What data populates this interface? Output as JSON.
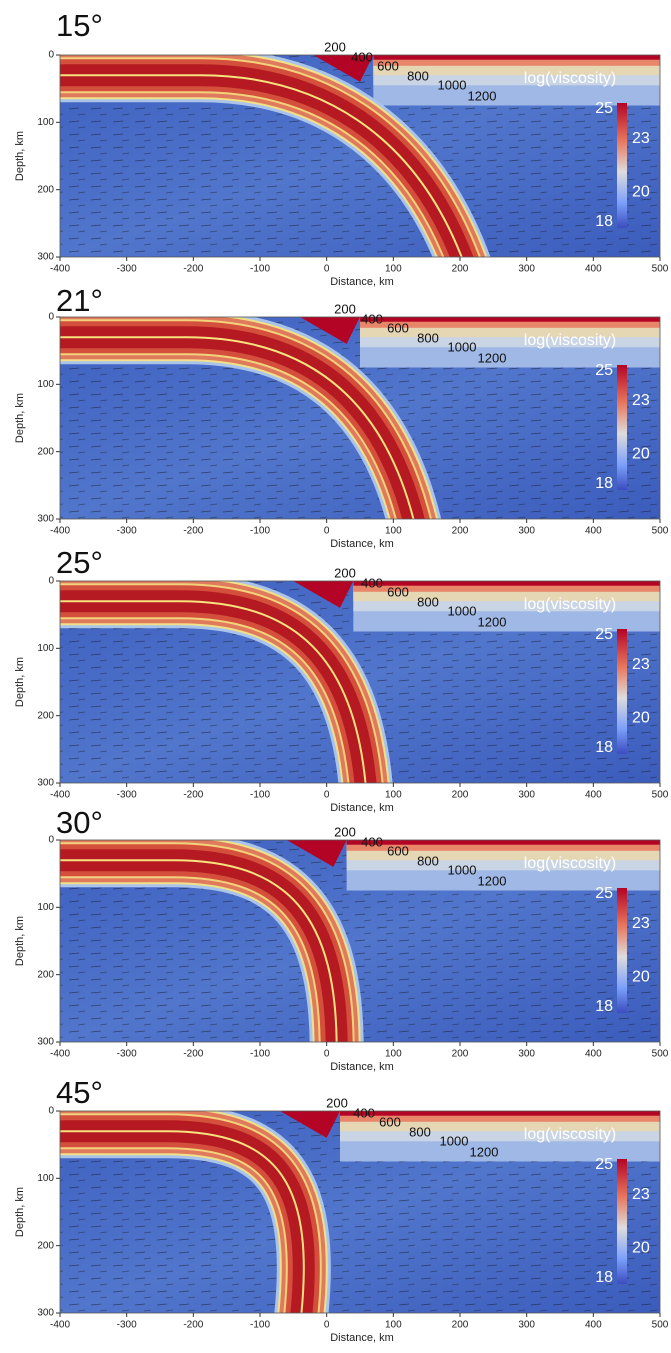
{
  "chart_data": [
    {
      "type": "field",
      "title": "15°",
      "xlabel": "Distance, km",
      "ylabel": "Depth, km",
      "xlim": [
        -400,
        500
      ],
      "ylim": [
        0,
        300
      ],
      "y_inverted": true,
      "xticks": [
        -400,
        -300,
        -200,
        -100,
        0,
        100,
        200,
        300,
        400,
        500
      ],
      "yticks": [
        0,
        100,
        200,
        300
      ],
      "contour_labels": [
        200,
        400,
        600,
        800,
        1000,
        1200
      ],
      "colorbar_label": "log(viscosity)",
      "colorbar_lim": [
        18,
        25
      ],
      "colorbar_ticks": [
        25,
        23,
        20,
        18
      ]
    },
    {
      "type": "field",
      "title": "21°",
      "xlabel": "Distance, km",
      "ylabel": "Depth, km",
      "xlim": [
        -400,
        500
      ],
      "ylim": [
        0,
        300
      ],
      "y_inverted": true,
      "xticks": [
        -400,
        -300,
        -200,
        -100,
        0,
        100,
        200,
        300,
        400,
        500
      ],
      "yticks": [
        0,
        100,
        200,
        300
      ],
      "contour_labels": [
        200,
        400,
        600,
        800,
        1000,
        1200
      ],
      "colorbar_label": "log(viscosity)",
      "colorbar_lim": [
        18,
        25
      ],
      "colorbar_ticks": [
        25,
        23,
        20,
        18
      ]
    },
    {
      "type": "field",
      "title": "25°",
      "xlabel": "Distance, km",
      "ylabel": "Depth, km",
      "xlim": [
        -400,
        500
      ],
      "ylim": [
        0,
        300
      ],
      "y_inverted": true,
      "xticks": [
        -400,
        -300,
        -200,
        -100,
        0,
        100,
        200,
        300,
        400,
        500
      ],
      "yticks": [
        0,
        100,
        200,
        300
      ],
      "contour_labels": [
        200,
        400,
        600,
        800,
        1000,
        1200
      ],
      "colorbar_label": "log(viscosity)",
      "colorbar_lim": [
        18,
        25
      ],
      "colorbar_ticks": [
        25,
        23,
        20,
        18
      ]
    },
    {
      "type": "field",
      "title": "30°",
      "xlabel": "Distance, km",
      "ylabel": "Depth, km",
      "xlim": [
        -400,
        500
      ],
      "ylim": [
        0,
        300
      ],
      "y_inverted": true,
      "xticks": [
        -400,
        -300,
        -200,
        -100,
        0,
        100,
        200,
        300,
        400,
        500
      ],
      "yticks": [
        0,
        100,
        200,
        300
      ],
      "contour_labels": [
        200,
        400,
        600,
        800,
        1000,
        1200
      ],
      "colorbar_label": "log(viscosity)",
      "colorbar_lim": [
        18,
        25
      ],
      "colorbar_ticks": [
        25,
        23,
        20,
        18
      ]
    },
    {
      "type": "field",
      "title": "45°",
      "xlabel": "Distance, km",
      "ylabel": "Depth, km",
      "xlim": [
        -400,
        500
      ],
      "ylim": [
        0,
        300
      ],
      "y_inverted": true,
      "xticks": [
        -400,
        -300,
        -200,
        -100,
        0,
        100,
        200,
        300,
        400,
        500
      ],
      "yticks": [
        0,
        100,
        200,
        300
      ],
      "contour_labels": [
        200,
        400,
        600,
        800,
        1000,
        1200
      ],
      "colorbar_label": "log(viscosity)",
      "colorbar_lim": [
        18,
        25
      ],
      "colorbar_ticks": [
        25,
        23,
        20,
        18
      ]
    }
  ]
}
